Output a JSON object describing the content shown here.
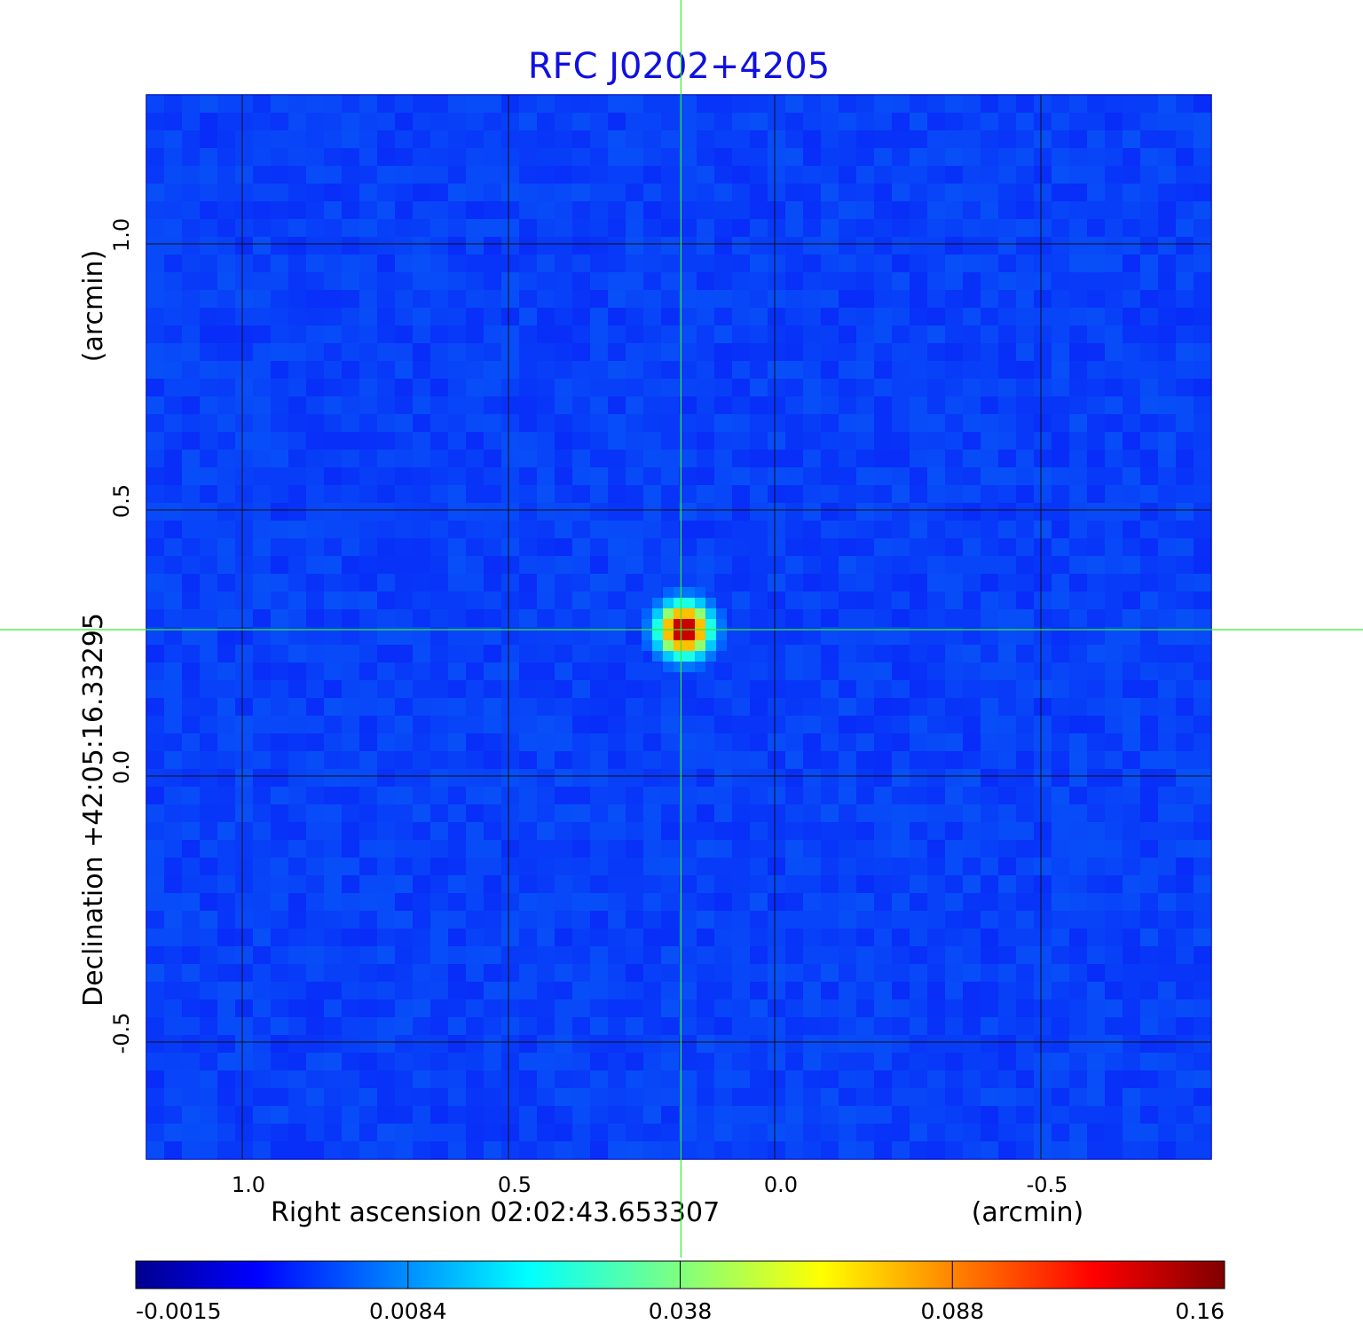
{
  "chart_data": {
    "type": "heatmap",
    "title": "RFC J0202+4205",
    "xlabel": "Right ascension  02:02:43.653307",
    "xunit": "(arcmin)",
    "ylabel": "Declination  +42:05:16.33295",
    "yunit": "(arcmin)",
    "xlim": [
      1.18,
      -0.82
    ],
    "ylim": [
      -0.72,
      1.28
    ],
    "x_ticks": [
      {
        "value": 1.0,
        "label": "1.0"
      },
      {
        "value": 0.5,
        "label": "0.5"
      },
      {
        "value": 0.0,
        "label": "0.0"
      },
      {
        "value": -0.5,
        "label": "-0.5"
      }
    ],
    "y_ticks": [
      {
        "value": 1.0,
        "label": "1.0"
      },
      {
        "value": 0.5,
        "label": "0.5"
      },
      {
        "value": 0.0,
        "label": "0.0"
      },
      {
        "value": -0.5,
        "label": "-0.5"
      }
    ],
    "grid": true,
    "colormap": "jet",
    "background_level": 0.005,
    "peak": {
      "x": 0.17,
      "y": 0.275,
      "value": 0.16
    },
    "crosshair": {
      "x": 0.176,
      "y": 0.275,
      "color": "#33ee33"
    },
    "colorbar": {
      "ticks": [
        {
          "value": -0.0015,
          "label": "-0.0015"
        },
        {
          "value": 0.0084,
          "label": "0.0084"
        },
        {
          "value": 0.038,
          "label": "0.038"
        },
        {
          "value": 0.088,
          "label": "0.088"
        },
        {
          "value": 0.16,
          "label": "0.16"
        }
      ]
    }
  }
}
